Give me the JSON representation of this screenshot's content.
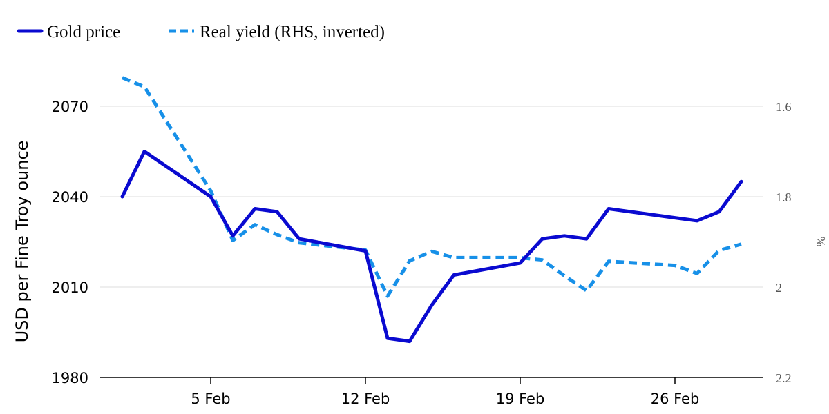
{
  "chart_data": {
    "type": "line",
    "x": [
      "1 Feb",
      "2 Feb",
      "5 Feb",
      "6 Feb",
      "7 Feb",
      "8 Feb",
      "9 Feb",
      "12 Feb",
      "13 Feb",
      "14 Feb",
      "15 Feb",
      "16 Feb",
      "19 Feb",
      "20 Feb",
      "21 Feb",
      "22 Feb",
      "23 Feb",
      "26 Feb",
      "27 Feb",
      "28 Feb",
      "29 Feb"
    ],
    "x_dates": [
      "2024-02-01",
      "2024-02-02",
      "2024-02-05",
      "2024-02-06",
      "2024-02-07",
      "2024-02-08",
      "2024-02-09",
      "2024-02-12",
      "2024-02-13",
      "2024-02-14",
      "2024-02-15",
      "2024-02-16",
      "2024-02-19",
      "2024-02-20",
      "2024-02-21",
      "2024-02-22",
      "2024-02-23",
      "2024-02-26",
      "2024-02-27",
      "2024-02-28",
      "2024-02-29"
    ],
    "xticks": [
      "5 Feb",
      "12 Feb",
      "19 Feb",
      "26 Feb"
    ],
    "xtick_dates": [
      "2024-02-05",
      "2024-02-12",
      "2024-02-19",
      "2024-02-26"
    ],
    "xlim": [
      "2024-01-31",
      "2024-03-01"
    ],
    "series": [
      {
        "name": "Gold price",
        "axis": "left",
        "color": "#0a0ad0",
        "dash": "solid",
        "values": [
          2040,
          2055,
          2040,
          2027,
          2036,
          2035,
          2026,
          2022,
          1993,
          1992,
          2004,
          2014,
          2018,
          2026,
          2027,
          2026,
          2036,
          2033,
          2032,
          2035,
          2045
        ]
      },
      {
        "name": "Real yield (RHS, inverted)",
        "axis": "right",
        "color": "#1790e8",
        "dash": "dashed",
        "values": [
          1.537,
          1.557,
          1.787,
          1.897,
          1.862,
          1.884,
          1.902,
          1.918,
          2.02,
          1.942,
          1.921,
          1.935,
          1.935,
          1.94,
          1.975,
          2.008,
          1.943,
          1.952,
          1.97,
          1.919,
          1.905
        ]
      }
    ],
    "ylabel": "USD per Fine Troy ounce",
    "yticks": [
      "2070",
      "2040",
      "2010",
      "1980"
    ],
    "ylim": [
      1980,
      2070
    ],
    "y2label": "%",
    "y2ticks": [
      "1.6",
      "1.8",
      "2",
      "2.2"
    ],
    "y2lim": [
      1.6,
      2.2
    ],
    "y2_inverted": true,
    "grid": true,
    "legend_position": "top-left"
  }
}
